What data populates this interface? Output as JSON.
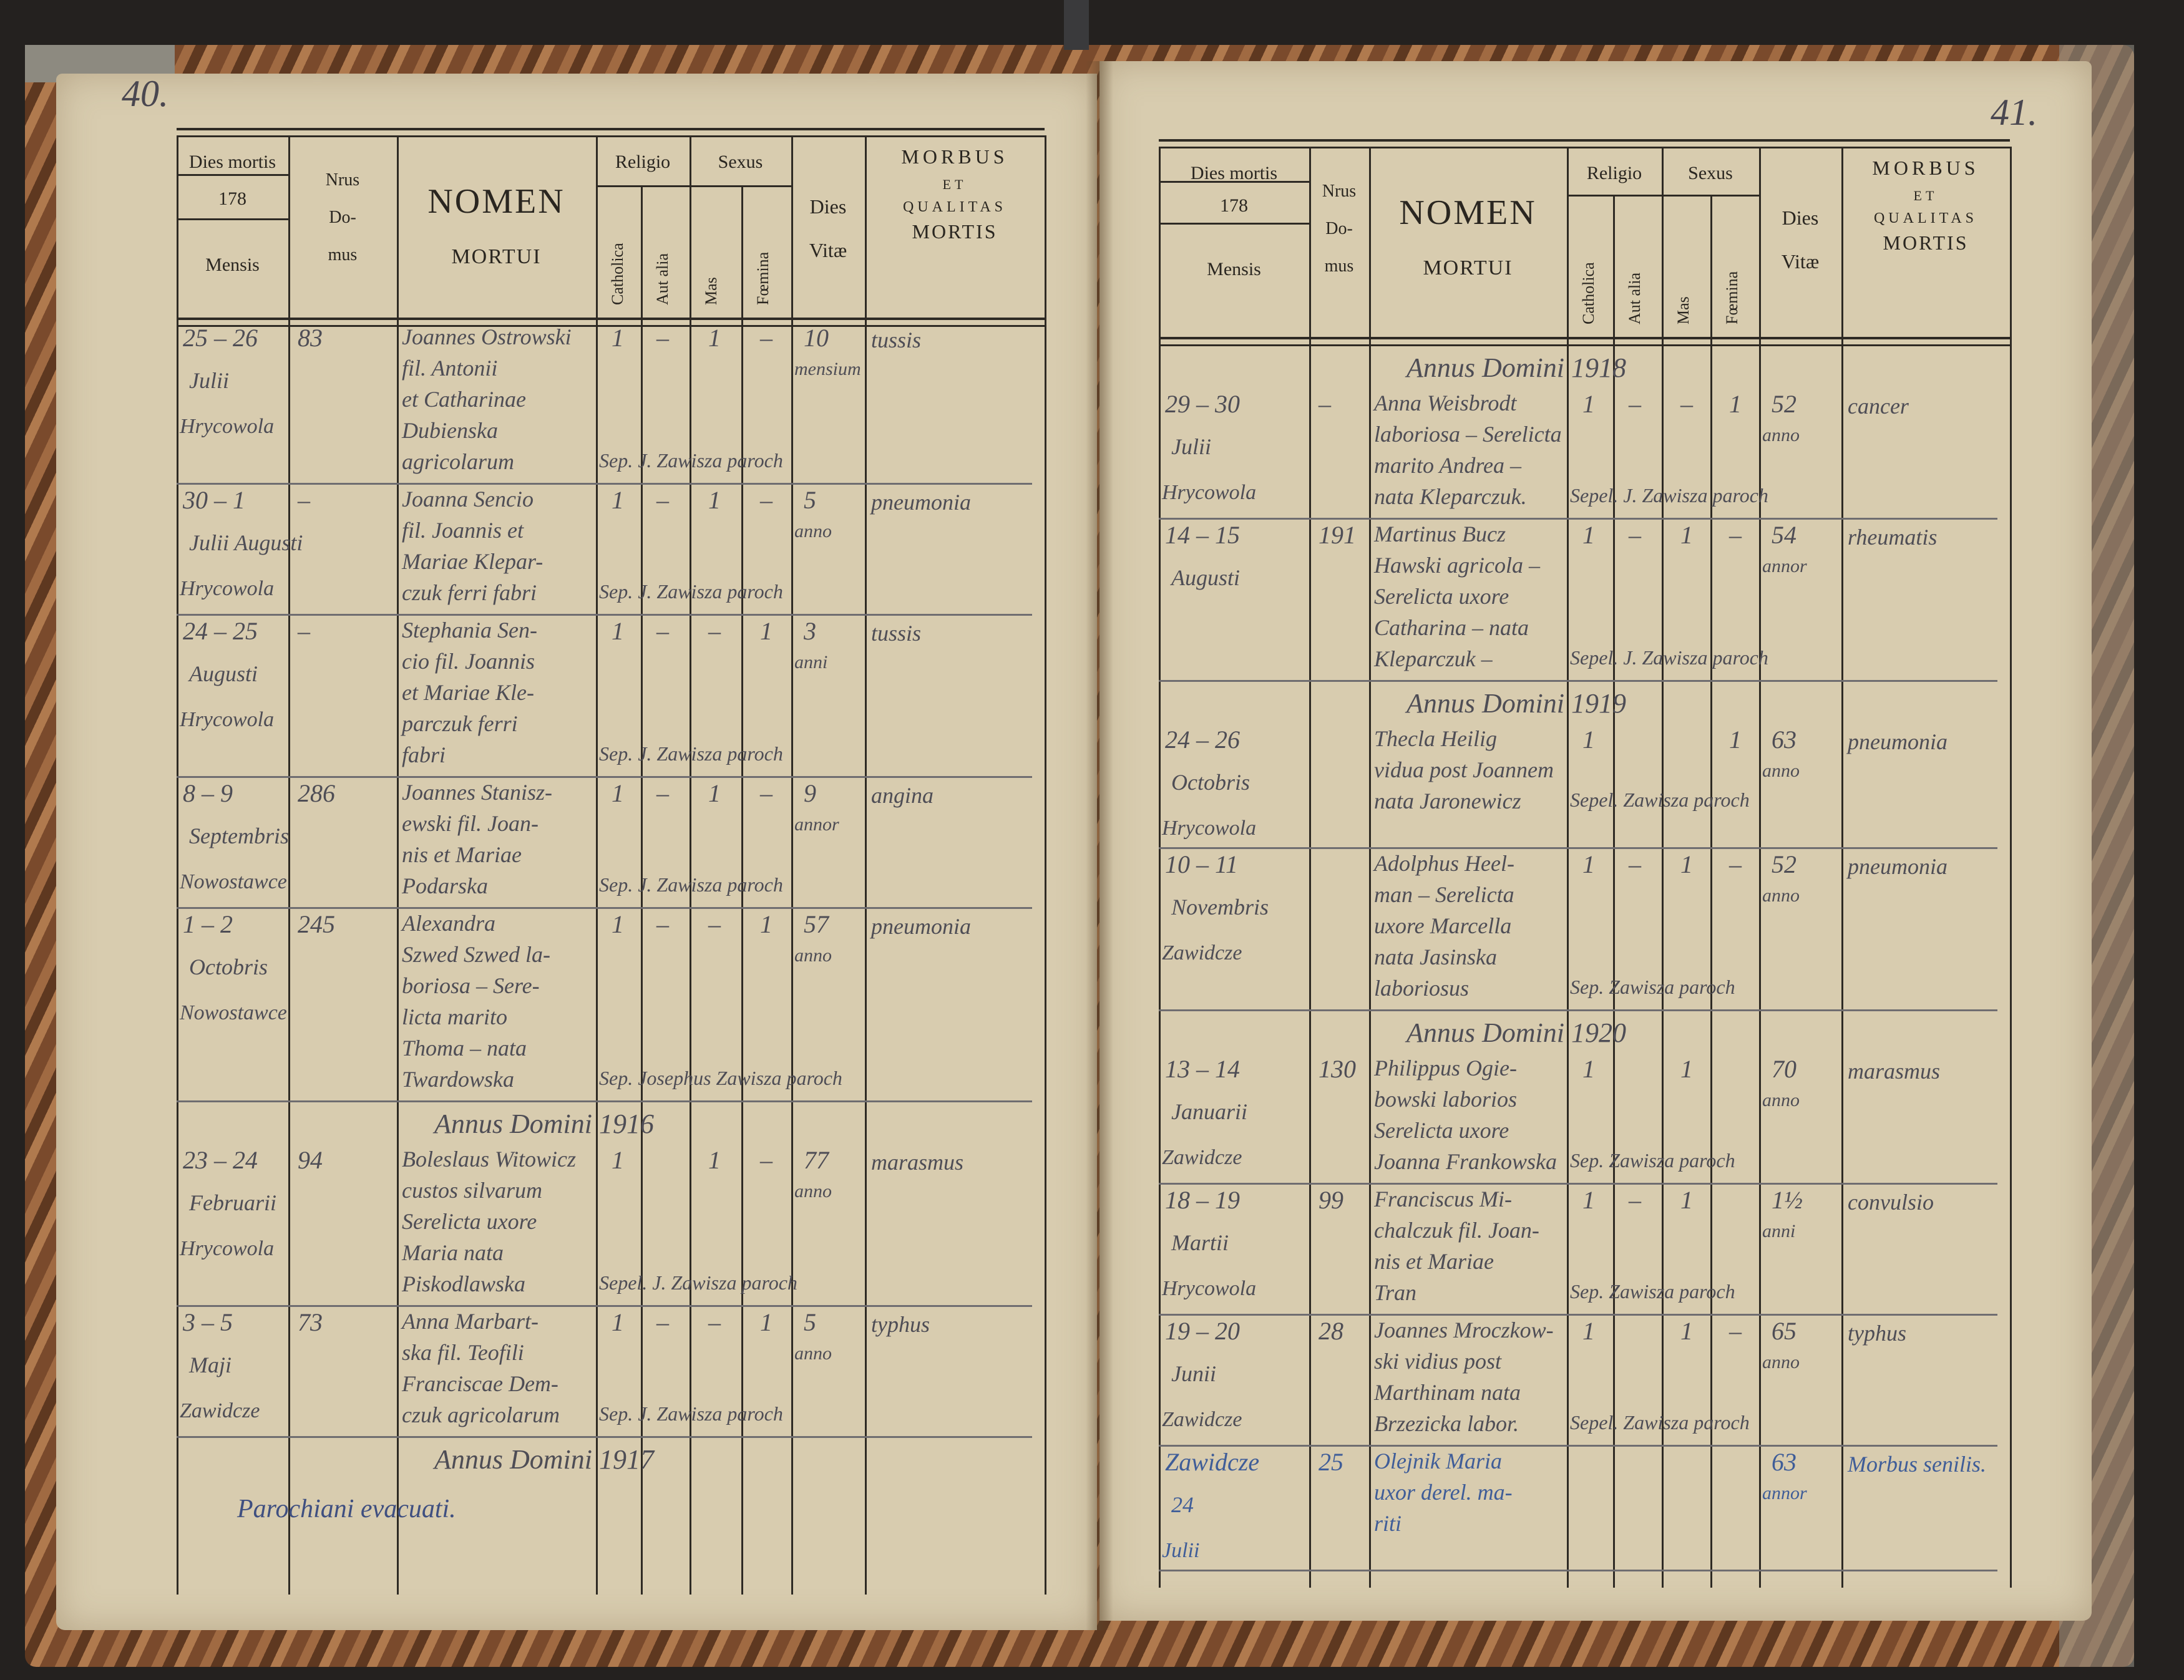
{
  "header": {
    "dies_mortis": "Dies mortis",
    "year_prefix": "178",
    "mensis": "Mensis",
    "nrus": "Nrus",
    "domus_1": "Do-",
    "domus_2": "mus",
    "nomen": "NOMEN",
    "mortui": "MORTUI",
    "religio": "Religio",
    "sexus": "Sexus",
    "catholica": "Catholica",
    "aut_alia": "Aut alia",
    "mas": "Mas",
    "femina": "Fœmina",
    "dies": "Dies",
    "vitae": "Vitæ",
    "morbus": "MORBUS",
    "et": "ET",
    "qualitas": "QUALITAS",
    "mortis": "MORTIS"
  },
  "left_page": {
    "page_number": "40.",
    "entries": [
      {
        "type": "entry",
        "date": "25 – 26",
        "month": "Julii",
        "place": "Hrycowola",
        "nr": "83",
        "name": [
          "Joannes Ostrowski",
          "fil. Antonii",
          "et Catharinae",
          "Dubienska",
          "agricolarum"
        ],
        "catholica": "1",
        "aut_alia": "–",
        "mas": "1",
        "femina": "–",
        "vitae": [
          "10",
          "mensium"
        ],
        "morbus": "tussis",
        "burial": "Sep. J. Zawisza paroch"
      },
      {
        "type": "entry",
        "date": "30 – 1",
        "month": "Julii Augusti",
        "place": "Hrycowola",
        "nr": "–",
        "name": [
          "Joanna Sencio",
          "fil. Joannis et",
          "Mariae Klepar-",
          "czuk ferri fabri"
        ],
        "catholica": "1",
        "aut_alia": "–",
        "mas": "1",
        "femina": "–",
        "vitae": [
          "5",
          "anno"
        ],
        "morbus": "pneumonia",
        "burial": "Sep. J. Zawisza paroch"
      },
      {
        "type": "entry",
        "date": "24 – 25",
        "month": "Augusti",
        "place": "Hrycowola",
        "nr": "–",
        "name": [
          "Stephania Sen-",
          "cio fil. Joannis",
          "et Mariae Kle-",
          "parczuk ferri",
          "fabri"
        ],
        "catholica": "1",
        "aut_alia": "–",
        "mas": "–",
        "femina": "1",
        "vitae": [
          "3",
          "anni"
        ],
        "morbus": "tussis",
        "burial": "Sep. J. Zawisza paroch"
      },
      {
        "type": "entry",
        "date": "8 – 9",
        "month": "Septembris",
        "place": "Nowostawce",
        "nr": "286",
        "name": [
          "Joannes Stanisz-",
          "ewski fil. Joan-",
          "nis et Mariae",
          "Podarska"
        ],
        "catholica": "1",
        "aut_alia": "–",
        "mas": "1",
        "femina": "–",
        "vitae": [
          "9",
          "annor"
        ],
        "morbus": "angina",
        "burial": "Sep. J. Zawisza paroch"
      },
      {
        "type": "entry",
        "date": "1 – 2",
        "month": "Octobris",
        "place": "Nowostawce",
        "nr": "245",
        "name": [
          "Alexandra",
          "Szwed Szwed la-",
          "boriosa – Sere-",
          "licta marito",
          "Thoma – nata",
          "Twardowska"
        ],
        "catholica": "1",
        "aut_alia": "–",
        "mas": "–",
        "femina": "1",
        "vitae": [
          "57",
          "anno"
        ],
        "morbus": "pneumonia",
        "burial": "Sep. Josephus Zawisza paroch"
      },
      {
        "type": "year",
        "label": "Annus Domini 1916"
      },
      {
        "type": "entry",
        "date": "23 – 24",
        "month": "Februarii",
        "place": "Hrycowola",
        "nr": "94",
        "name": [
          "Boleslaus Witowicz",
          "custos silvarum",
          "Serelicta uxore",
          "Maria nata",
          "Piskodlawska"
        ],
        "catholica": "1",
        "aut_alia": "",
        "mas": "1",
        "femina": "–",
        "vitae": [
          "77",
          "anno"
        ],
        "morbus": "marasmus",
        "burial": "Sepel. J. Zawisza paroch"
      },
      {
        "type": "entry",
        "date": "3 – 5",
        "month": "Maji",
        "place": "Zawidcze",
        "nr": "73",
        "name": [
          "Anna Marbart-",
          "ska fil. Teofili",
          "Franciscae Dem-",
          "czuk agricolarum"
        ],
        "catholica": "1",
        "aut_alia": "–",
        "mas": "–",
        "femina": "1",
        "vitae": [
          "5",
          "anno"
        ],
        "morbus": "typhus",
        "burial": "Sep. J. Zawisza paroch"
      },
      {
        "type": "year",
        "label": "Annus Domini 1917"
      }
    ],
    "note": "Parochiani evacuati."
  },
  "right_page": {
    "page_number": "41.",
    "entries": [
      {
        "type": "year",
        "label": "Annus Domini 1918"
      },
      {
        "type": "entry",
        "date": "29 – 30",
        "month": "Julii",
        "place": "Hrycowola",
        "nr": "–",
        "name": [
          "Anna Weisbrodt",
          "laboriosa – Serelicta",
          "marito Andrea –",
          "nata Kleparczuk."
        ],
        "catholica": "1",
        "aut_alia": "–",
        "mas": "–",
        "femina": "1",
        "vitae": [
          "52",
          "anno"
        ],
        "morbus": "cancer",
        "burial": "Sepel. J. Zawisza paroch"
      },
      {
        "type": "entry",
        "date": "14 – 15",
        "month": "Augusti",
        "place": "",
        "nr": "191",
        "name": [
          "Martinus Bucz",
          "Hawski agricola –",
          "Serelicta uxore",
          "Catharina – nata",
          "Kleparczuk –"
        ],
        "catholica": "1",
        "aut_alia": "–",
        "mas": "1",
        "femina": "–",
        "vitae": [
          "54",
          "annor"
        ],
        "morbus": "rheumatis",
        "burial": "Sepel. J. Zawisza paroch"
      },
      {
        "type": "year",
        "label": "Annus Domini 1919"
      },
      {
        "type": "entry",
        "date": "24 – 26",
        "month": "Octobris",
        "place": "Hrycowola",
        "nr": "",
        "name": [
          "Thecla Heilig",
          "vidua post Joannem",
          "nata Jaronewicz"
        ],
        "catholica": "1",
        "aut_alia": "",
        "mas": "",
        "femina": "1",
        "vitae": [
          "63",
          "anno"
        ],
        "morbus": "pneumonia",
        "burial": "Sepel. Zawisza paroch"
      },
      {
        "type": "entry",
        "date": "10 – 11",
        "month": "Novembris",
        "place": "Zawidcze",
        "nr": "",
        "name": [
          "Adolphus Heel-",
          "man – Serelicta",
          "uxore Marcella",
          "nata Jasinska",
          "laboriosus"
        ],
        "catholica": "1",
        "aut_alia": "–",
        "mas": "1",
        "femina": "–",
        "vitae": [
          "52",
          "anno"
        ],
        "morbus": "pneumonia",
        "burial": "Sep. Zawisza paroch"
      },
      {
        "type": "year",
        "label": "Annus Domini 1920"
      },
      {
        "type": "entry",
        "date": "13 – 14",
        "month": "Januarii",
        "place": "Zawidcze",
        "nr": "130",
        "name": [
          "Philippus Ogie-",
          "bowski laborios",
          "Serelicta uxore",
          "Joanna Frankowska"
        ],
        "catholica": "1",
        "aut_alia": "",
        "mas": "1",
        "femina": "",
        "vitae": [
          "70",
          "anno"
        ],
        "morbus": "marasmus",
        "burial": "Sep. Zawisza paroch"
      },
      {
        "type": "entry",
        "date": "18 – 19",
        "month": "Martii",
        "place": "Hrycowola",
        "nr": "99",
        "name": [
          "Franciscus Mi-",
          "chalczuk fil. Joan-",
          "nis et Mariae",
          "Tran"
        ],
        "catholica": "1",
        "aut_alia": "–",
        "mas": "1",
        "femina": "",
        "vitae": [
          "1½",
          "anni"
        ],
        "morbus": "convulsio",
        "burial": "Sep. Zawisza paroch"
      },
      {
        "type": "entry",
        "date": "19 – 20",
        "month": "Junii",
        "place": "Zawidcze",
        "nr": "28",
        "name": [
          "Joannes Mroczkow-",
          "ski vidius post",
          "Marthinam nata",
          "Brzezicka labor."
        ],
        "catholica": "1",
        "aut_alia": "",
        "mas": "1",
        "femina": "–",
        "vitae": [
          "65",
          "anno"
        ],
        "morbus": "typhus",
        "burial": "Sepel. Zawisza paroch"
      },
      {
        "type": "entry",
        "ink": "blue",
        "date": "Zawidcze",
        "month": "24",
        "place": "Julii",
        "nr": "25",
        "name": [
          "Olejnik Maria",
          "uxor derel. ma-",
          "riti"
        ],
        "catholica": "",
        "aut_alia": "",
        "mas": "",
        "femina": "",
        "vitae": [
          "63",
          "annor"
        ],
        "morbus": "Morbus senilis.",
        "burial": ""
      }
    ]
  },
  "colors": {
    "paper": "#d8ccaf",
    "pencil": "#4e4d55",
    "ink_blue": "#3f5d98",
    "print": "#2a2620",
    "cover": "#7a4a2c"
  }
}
